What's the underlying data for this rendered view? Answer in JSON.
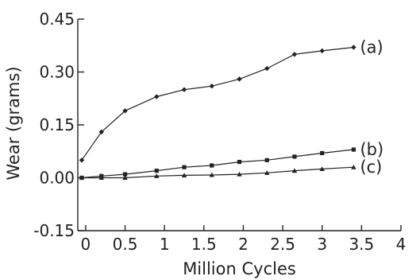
{
  "chart_data": {
    "type": "line",
    "title": "",
    "xlabel": "Million Cycles",
    "ylabel": "Wear (grams)",
    "xlim": [
      -0.1,
      4
    ],
    "ylim": [
      -0.15,
      0.45
    ],
    "xticks": [
      0,
      0.5,
      1,
      1.5,
      2,
      2.5,
      3,
      3.5,
      4
    ],
    "xtick_labels": [
      "0",
      "0.5",
      "1",
      "1.5",
      "2",
      "2.5",
      "3",
      "3.5",
      "4"
    ],
    "yticks": [
      -0.15,
      0,
      0.15,
      0.3,
      0.45
    ],
    "ytick_labels": [
      "-0.15",
      "0.00",
      "0.15",
      "0.30",
      "0.45"
    ],
    "grid": false,
    "legend": "none",
    "series": [
      {
        "name": "(a)",
        "marker": "diamond",
        "color": "#222222",
        "x": [
          -0.05,
          0.2,
          0.5,
          0.9,
          1.25,
          1.6,
          1.95,
          2.3,
          2.65,
          3.0,
          3.4
        ],
        "y": [
          0.05,
          0.13,
          0.19,
          0.23,
          0.25,
          0.26,
          0.28,
          0.31,
          0.35,
          0.36,
          0.37
        ]
      },
      {
        "name": "(b)",
        "marker": "square",
        "color": "#222222",
        "x": [
          -0.05,
          0.2,
          0.5,
          0.9,
          1.25,
          1.6,
          1.95,
          2.3,
          2.65,
          3.0,
          3.4
        ],
        "y": [
          0.0,
          0.005,
          0.01,
          0.02,
          0.03,
          0.035,
          0.045,
          0.05,
          0.06,
          0.07,
          0.08
        ]
      },
      {
        "name": "(c)",
        "marker": "triangle",
        "color": "#222222",
        "x": [
          -0.05,
          0.2,
          0.5,
          0.9,
          1.25,
          1.6,
          1.95,
          2.3,
          2.65,
          3.0,
          3.4
        ],
        "y": [
          0.0,
          0.0,
          0.0,
          0.005,
          0.007,
          0.008,
          0.01,
          0.014,
          0.02,
          0.025,
          0.03
        ]
      }
    ]
  }
}
